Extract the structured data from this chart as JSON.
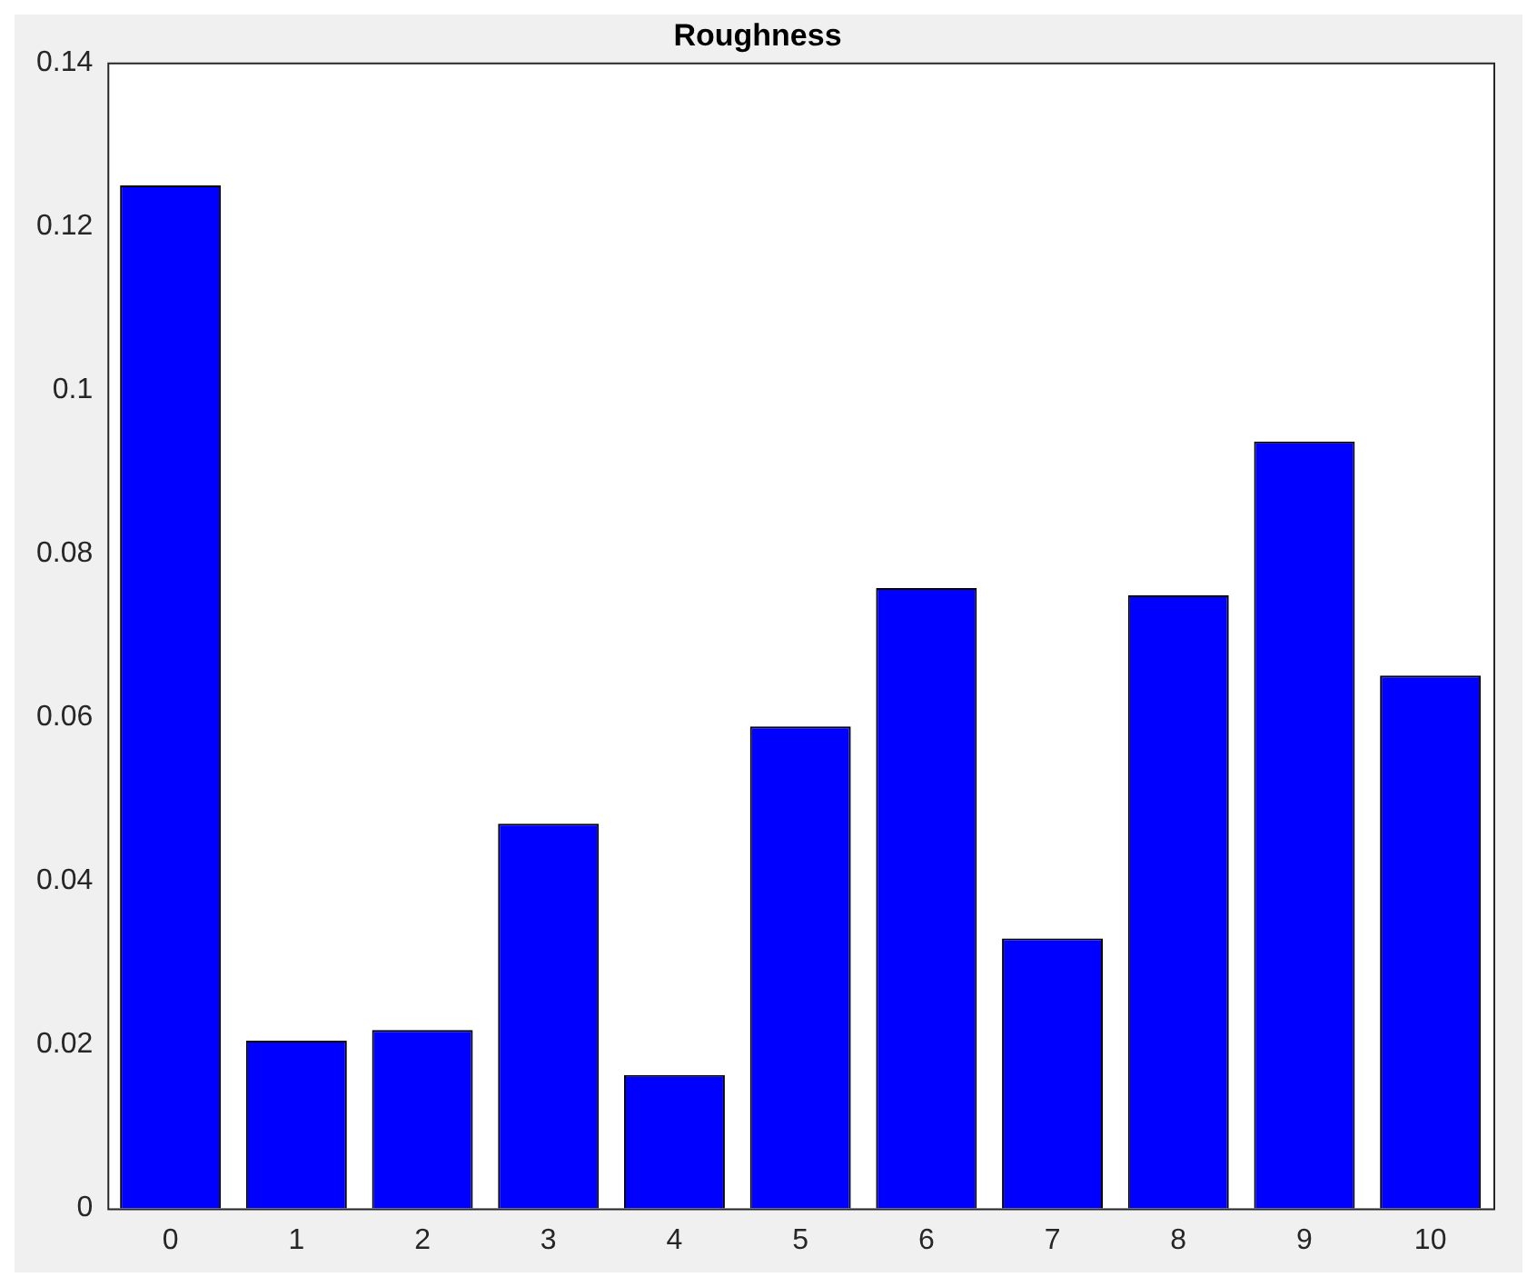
{
  "chart_data": {
    "type": "bar",
    "title": "Roughness",
    "categories": [
      "0",
      "1",
      "2",
      "3",
      "4",
      "5",
      "6",
      "7",
      "8",
      "9",
      "10"
    ],
    "values": [
      0.125,
      0.0205,
      0.0218,
      0.047,
      0.0163,
      0.0589,
      0.0758,
      0.033,
      0.0749,
      0.0937,
      0.0651
    ],
    "color": "#0000ff",
    "ylim": [
      0,
      0.14
    ],
    "yticks": [
      0,
      0.02,
      0.04,
      0.06,
      0.08,
      0.1,
      0.12,
      0.14
    ],
    "grid": false,
    "legend": false
  }
}
